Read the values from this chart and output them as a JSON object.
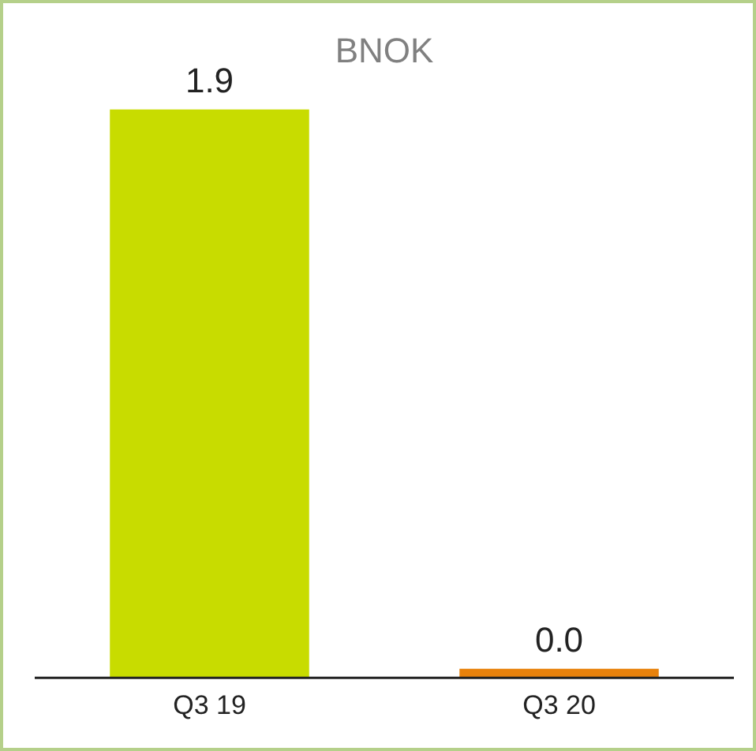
{
  "chart_data": {
    "type": "bar",
    "title": "BNOK",
    "categories": [
      "Q3 19",
      "Q3 20"
    ],
    "values": [
      1.9,
      0.03
    ],
    "colors": [
      "#c8dc00",
      "#e8820c"
    ],
    "value_labels": [
      "1.9",
      "0.0"
    ],
    "grid": false,
    "legend": false
  }
}
